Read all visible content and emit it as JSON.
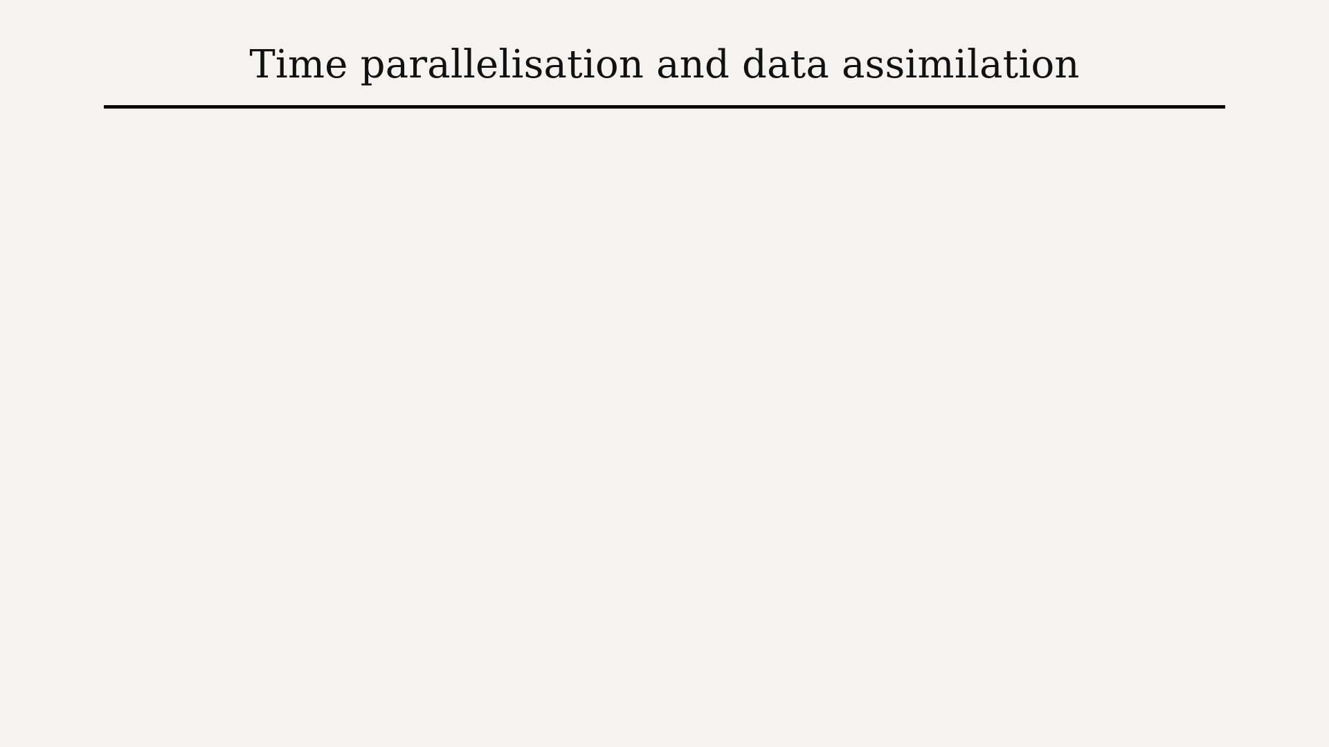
{
  "slide": {
    "title": "Time parallelisation and data assimilation"
  }
}
